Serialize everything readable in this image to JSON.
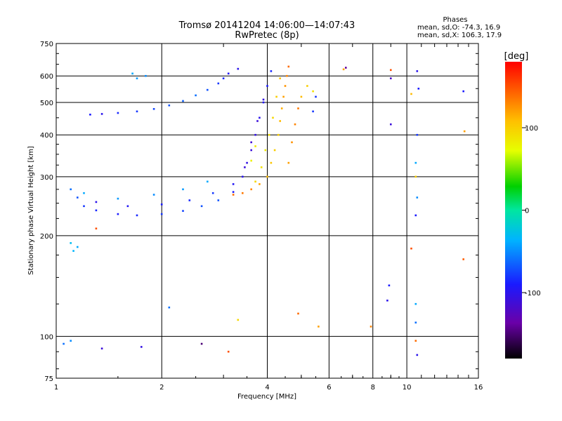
{
  "header": {
    "title_line1": "Tromsø 20141204 14:06:00—14:07:43",
    "title_line2": "RwPretec (8p)",
    "phases_heading": "Phases",
    "phases_o": "mean, sd,O: -74.3, 16.9",
    "phases_x": "mean, sd,X: 106.3, 17.9"
  },
  "colorbar": {
    "unit": "[deg]",
    "ticks": [
      "100",
      "0",
      "-100"
    ],
    "range": [
      -180,
      180
    ],
    "tick_values": [
      100,
      0,
      -100
    ]
  },
  "chart_data": {
    "type": "scatter",
    "xlabel": "Frequency [MHz]",
    "ylabel": "Stationary phase Virtual Height [km]",
    "xscale": "log",
    "yscale": "log",
    "xlim": [
      1,
      16
    ],
    "ylim": [
      75,
      750
    ],
    "x_ticks": [
      1,
      2,
      4,
      6,
      8,
      10,
      16
    ],
    "x_tick_labels": [
      "1",
      "2",
      "4",
      "6",
      "8",
      "10",
      "16"
    ],
    "y_ticks": [
      75,
      100,
      200,
      300,
      400,
      500,
      600,
      750
    ],
    "y_tick_labels": [
      "75",
      "100",
      "200",
      "300",
      "400",
      "500",
      "600",
      "750"
    ],
    "grid": true,
    "series": [
      {
        "mode": "O",
        "mean_phase_deg": -74.3,
        "points": [
          [
            1.25,
            460,
            -90
          ],
          [
            1.35,
            462,
            -100
          ],
          [
            1.5,
            465,
            -85
          ],
          [
            1.7,
            470,
            -80
          ],
          [
            1.9,
            478,
            -75
          ],
          [
            2.1,
            490,
            -70
          ],
          [
            2.3,
            505,
            -65
          ],
          [
            2.5,
            525,
            -60
          ],
          [
            2.7,
            545,
            -70
          ],
          [
            2.9,
            570,
            -80
          ],
          [
            3.0,
            590,
            -85
          ],
          [
            3.1,
            610,
            -95
          ],
          [
            3.3,
            630,
            -100
          ],
          [
            1.65,
            610,
            -40
          ],
          [
            1.7,
            590,
            -45
          ],
          [
            1.8,
            600,
            -50
          ],
          [
            1.1,
            275,
            -60
          ],
          [
            1.15,
            260,
            -70
          ],
          [
            1.2,
            245,
            -80
          ],
          [
            1.3,
            238,
            -85
          ],
          [
            1.5,
            232,
            -90
          ],
          [
            1.7,
            230,
            -85
          ],
          [
            2.0,
            232,
            -80
          ],
          [
            2.3,
            237,
            -75
          ],
          [
            2.6,
            245,
            -70
          ],
          [
            2.9,
            255,
            -70
          ],
          [
            3.2,
            270,
            -90
          ],
          [
            3.4,
            300,
            -100
          ],
          [
            3.5,
            330,
            -105
          ],
          [
            3.6,
            360,
            -110
          ],
          [
            3.7,
            400,
            -105
          ],
          [
            3.8,
            450,
            -100
          ],
          [
            3.9,
            500,
            -95
          ],
          [
            4.0,
            560,
            -90
          ],
          [
            4.1,
            620,
            -85
          ],
          [
            1.3,
            252,
            -100
          ],
          [
            1.6,
            245,
            -95
          ],
          [
            2.0,
            248,
            -90
          ],
          [
            2.4,
            255,
            -85
          ],
          [
            2.8,
            268,
            -80
          ],
          [
            3.2,
            285,
            -95
          ],
          [
            3.45,
            320,
            -110
          ],
          [
            3.6,
            380,
            -115
          ],
          [
            3.75,
            440,
            -110
          ],
          [
            3.9,
            510,
            -105
          ],
          [
            1.2,
            268,
            -40
          ],
          [
            1.5,
            258,
            -45
          ],
          [
            1.9,
            265,
            -50
          ],
          [
            2.3,
            275,
            -45
          ],
          [
            2.7,
            290,
            -40
          ],
          [
            1.1,
            190,
            -30
          ],
          [
            1.12,
            180,
            -35
          ],
          [
            1.15,
            185,
            -40
          ],
          [
            1.05,
            95,
            -60
          ],
          [
            1.1,
            97,
            -50
          ],
          [
            1.35,
            92,
            -110
          ],
          [
            1.75,
            93,
            -105
          ],
          [
            2.6,
            95,
            -150
          ],
          [
            6.7,
            635,
            -140
          ],
          [
            9.0,
            590,
            -120
          ],
          [
            9.0,
            430,
            -110
          ],
          [
            10.7,
            620,
            -100
          ],
          [
            10.8,
            550,
            -90
          ],
          [
            10.7,
            400,
            -80
          ],
          [
            10.6,
            330,
            -40
          ],
          [
            10.7,
            260,
            -50
          ],
          [
            10.6,
            230,
            -90
          ],
          [
            10.6,
            125,
            -40
          ],
          [
            10.6,
            110,
            -60
          ],
          [
            10.7,
            88,
            -100
          ],
          [
            8.9,
            142,
            -90
          ],
          [
            8.8,
            128,
            -100
          ],
          [
            2.1,
            122,
            -60
          ],
          [
            14.5,
            540,
            -90
          ],
          [
            5.5,
            520,
            -80
          ],
          [
            5.4,
            470,
            -80
          ]
        ]
      },
      {
        "mode": "X",
        "mean_phase_deg": 106.3,
        "points": [
          [
            3.2,
            265,
            140
          ],
          [
            3.4,
            268,
            135
          ],
          [
            3.6,
            275,
            130
          ],
          [
            3.8,
            285,
            120
          ],
          [
            4.0,
            300,
            110
          ],
          [
            4.1,
            330,
            105
          ],
          [
            4.2,
            360,
            100
          ],
          [
            4.3,
            400,
            100
          ],
          [
            4.35,
            440,
            110
          ],
          [
            4.4,
            480,
            115
          ],
          [
            4.45,
            520,
            120
          ],
          [
            4.5,
            560,
            125
          ],
          [
            4.55,
            600,
            130
          ],
          [
            4.6,
            640,
            140
          ],
          [
            3.7,
            290,
            95
          ],
          [
            3.85,
            320,
            90
          ],
          [
            3.95,
            360,
            85
          ],
          [
            4.05,
            400,
            90
          ],
          [
            4.15,
            450,
            95
          ],
          [
            4.25,
            520,
            100
          ],
          [
            4.35,
            590,
            105
          ],
          [
            4.6,
            330,
            120
          ],
          [
            4.7,
            380,
            125
          ],
          [
            4.8,
            430,
            130
          ],
          [
            4.9,
            480,
            135
          ],
          [
            5.0,
            520,
            110
          ],
          [
            5.2,
            560,
            100
          ],
          [
            5.4,
            540,
            90
          ],
          [
            3.6,
            335,
            80
          ],
          [
            3.7,
            370,
            85
          ],
          [
            3.3,
            112,
            95
          ],
          [
            3.1,
            90,
            150
          ],
          [
            4.9,
            117,
            140
          ],
          [
            5.6,
            107,
            120
          ],
          [
            7.9,
            107,
            130
          ],
          [
            9.0,
            625,
            150
          ],
          [
            6.6,
            628,
            120
          ],
          [
            10.3,
            183,
            150
          ],
          [
            14.5,
            170,
            145
          ],
          [
            10.6,
            97,
            140
          ],
          [
            14.6,
            410,
            120
          ],
          [
            10.6,
            300,
            100
          ],
          [
            10.3,
            530,
            110
          ],
          [
            1.3,
            210,
            150
          ]
        ]
      }
    ]
  }
}
